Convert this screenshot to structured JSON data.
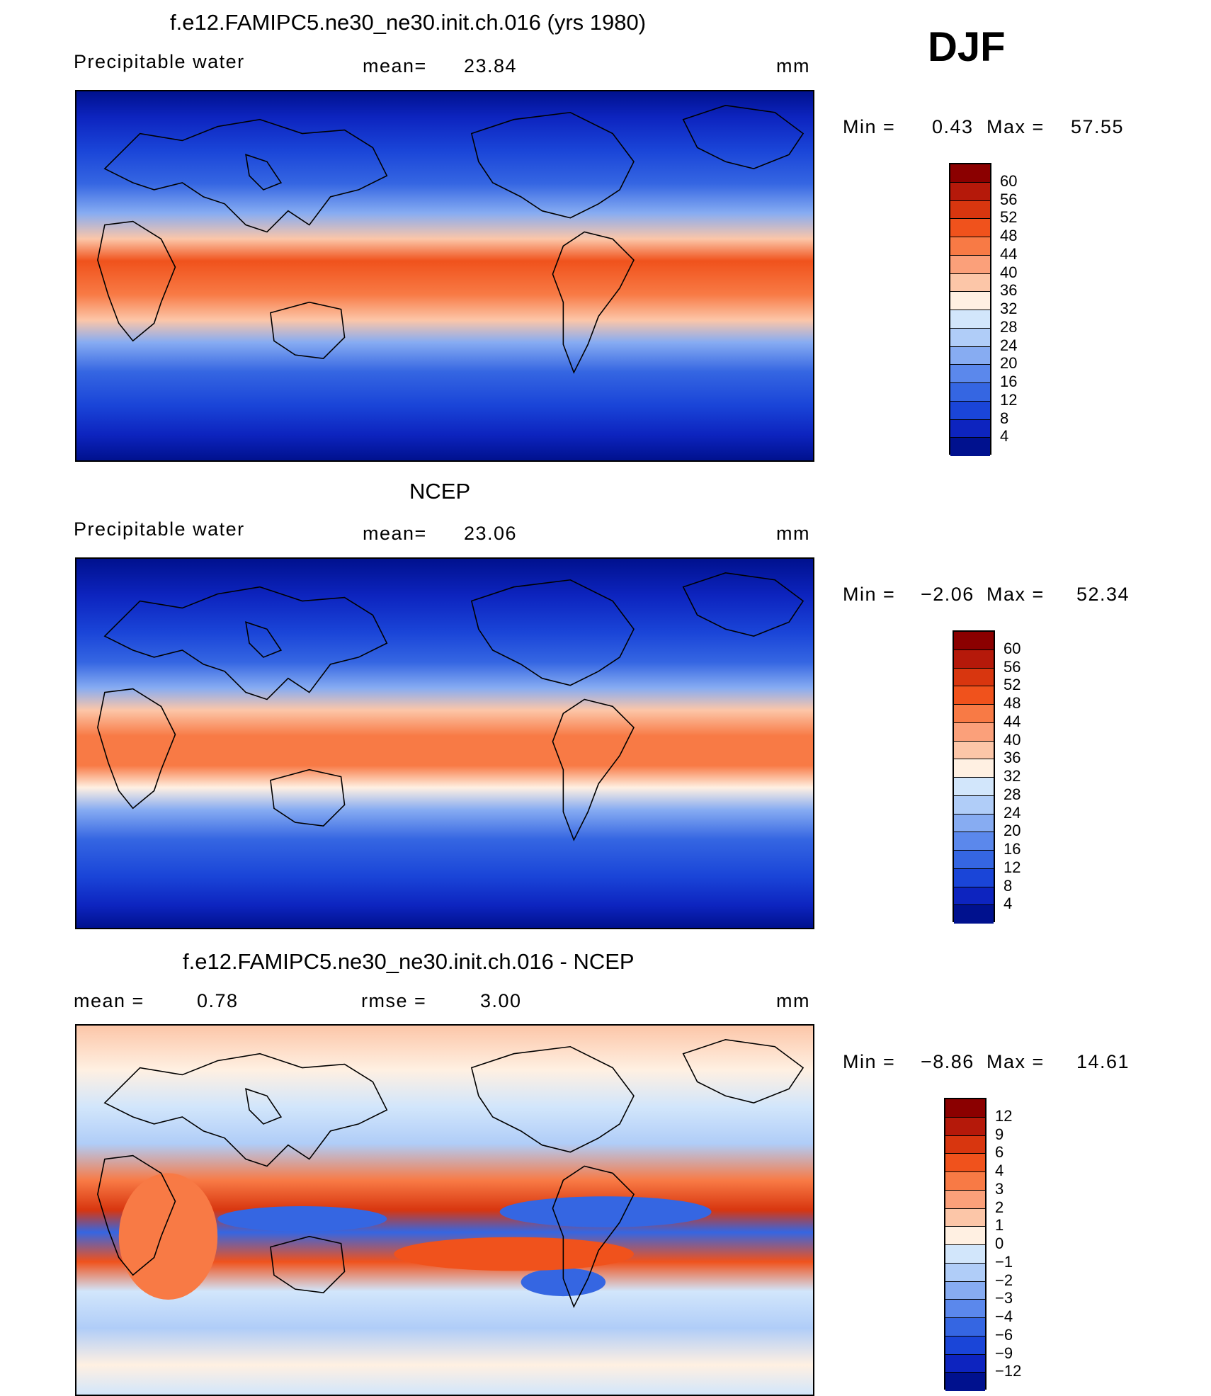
{
  "season_label": "DJF",
  "chart_data": [
    {
      "type": "heatmap",
      "title": "f.e12.FAMIPC5.ne30_ne30.init.ch.016 (yrs 1980)",
      "variable_label": "Precipitable  water",
      "stat_label": "mean=",
      "stat_value": "23.84",
      "units": "mm",
      "min_label": "Min  =",
      "min_value": "0.43",
      "max_label": "Max  =",
      "max_value": "57.55",
      "colorbar_ticks": [
        "60",
        "56",
        "52",
        "48",
        "44",
        "40",
        "36",
        "32",
        "28",
        "24",
        "20",
        "16",
        "12",
        "8",
        "4"
      ],
      "colorbar_colors": [
        "#8b0000",
        "#b5190a",
        "#d8360f",
        "#f0521c",
        "#f87a45",
        "#fba07a",
        "#fcc6a8",
        "#fff0e2",
        "#d2e6fb",
        "#b0cdf8",
        "#87acf2",
        "#5b88ec",
        "#3566e2",
        "#1a45d8",
        "#0d24bf",
        "#00118e"
      ],
      "regions": {
        "equatorial_band": "48",
        "polar": "4"
      }
    },
    {
      "type": "heatmap",
      "title": "NCEP",
      "variable_label": "Precipitable  water",
      "stat_label": "mean=",
      "stat_value": "23.06",
      "units": "mm",
      "min_label": "Min  =",
      "min_value": "−2.06",
      "max_label": "Max  =",
      "max_value": "52.34",
      "colorbar_ticks": [
        "60",
        "56",
        "52",
        "48",
        "44",
        "40",
        "36",
        "32",
        "28",
        "24",
        "20",
        "16",
        "12",
        "8",
        "4"
      ],
      "colorbar_colors": [
        "#8b0000",
        "#b5190a",
        "#d8360f",
        "#f0521c",
        "#f87a45",
        "#fba07a",
        "#fcc6a8",
        "#fff0e2",
        "#d2e6fb",
        "#b0cdf8",
        "#87acf2",
        "#5b88ec",
        "#3566e2",
        "#1a45d8",
        "#0d24bf",
        "#00118e"
      ],
      "regions": {
        "equatorial_band": "44",
        "polar": "4"
      }
    },
    {
      "type": "heatmap",
      "title": "f.e12.FAMIPC5.ne30_ne30.init.ch.016 - NCEP",
      "mean_label": "mean  =",
      "mean_value": "0.78",
      "rmse_label": "rmse  =",
      "rmse_value": "3.00",
      "units": "mm",
      "min_label": "Min  =",
      "min_value": "−8.86",
      "max_label": "Max  =",
      "max_value": "14.61",
      "colorbar_ticks": [
        "12",
        "9",
        "6",
        "4",
        "3",
        "2",
        "1",
        "0",
        "−1",
        "−2",
        "−3",
        "−4",
        "−6",
        "−9",
        "−12"
      ],
      "colorbar_colors": [
        "#8b0000",
        "#b5190a",
        "#d8360f",
        "#f0521c",
        "#f87a45",
        "#fba07a",
        "#fcc6a8",
        "#fff0e2",
        "#d2e6fb",
        "#b0cdf8",
        "#87acf2",
        "#5b88ec",
        "#3566e2",
        "#1a45d8",
        "#0d24bf",
        "#00118e"
      ]
    }
  ]
}
